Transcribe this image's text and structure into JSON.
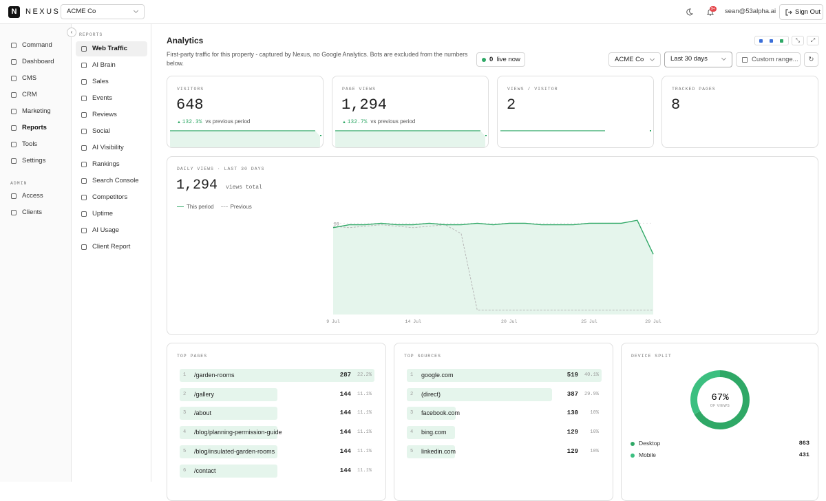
{
  "header": {
    "logo": "N",
    "brand": "NEXUS",
    "org": "ACME Co",
    "notifications": "9+",
    "user": "sean@53alpha.ai",
    "sign_out": "Sign Out"
  },
  "sidebar": {
    "items": [
      "Command",
      "Dashboard",
      "CMS",
      "CRM",
      "Marketing",
      "Reports",
      "Tools",
      "Settings"
    ],
    "active_index": 5,
    "admin_heading": "ADMIN",
    "admin_items": [
      "Access",
      "Clients"
    ]
  },
  "subnav": {
    "heading": "REPORTS",
    "items": [
      "Web Traffic",
      "AI Brain",
      "Sales",
      "Events",
      "Reviews",
      "Social",
      "AI Visibility",
      "Rankings",
      "Search Console",
      "Competitors",
      "Uptime",
      "AI Usage",
      "Client Report"
    ],
    "active_index": 0
  },
  "main": {
    "title": "Analytics",
    "description": "First-party traffic for this property - captured by Nexus, no Google Analytics. Bots are excluded from the numbers below.",
    "live_count": "0",
    "live_label": "live now",
    "filters": {
      "org": "ACME Co",
      "range": "Last 30 days",
      "custom": "Custom range..."
    }
  },
  "kpis": [
    {
      "label": "VISITORS",
      "value": "648",
      "change": "132.3%",
      "change_note": "vs previous period"
    },
    {
      "label": "PAGE VIEWS",
      "value": "1,294",
      "change": "132.7%",
      "change_note": "vs previous period"
    },
    {
      "label": "VIEWS / VISITOR",
      "value": "2"
    },
    {
      "label": "TRACKED PAGES",
      "value": "8"
    }
  ],
  "chart_data": {
    "type": "line",
    "title": "DAILY VIEWS · LAST 30 DAYS",
    "total": "1,294",
    "total_label": "views total",
    "categories": [
      "9 Jul",
      null,
      null,
      null,
      null,
      "14 Jul",
      null,
      null,
      null,
      null,
      null,
      "20 Jul",
      null,
      null,
      null,
      null,
      "25 Jul",
      null,
      null,
      null,
      "29 Jul"
    ],
    "series": [
      {
        "name": "This period",
        "color": "#2fa866",
        "values": [
          56,
          58,
          58,
          59,
          58,
          58,
          59,
          58,
          58,
          59,
          58,
          59,
          59,
          58,
          58,
          58,
          59,
          59,
          59,
          61,
          38
        ]
      },
      {
        "name": "Previous",
        "color": "#b8b8b8",
        "values": [
          57,
          56,
          57,
          58,
          57,
          56,
          57,
          58,
          52,
          0,
          0,
          0,
          0,
          0,
          0,
          0,
          0,
          0,
          0,
          0,
          0
        ]
      }
    ],
    "ylim": [
      -3,
      62
    ],
    "yticks": [
      59,
      32,
      4
    ],
    "grid": true,
    "area_color": "#e5f5ec"
  },
  "top_pages": {
    "title": "TOP PAGES",
    "bar_color": "#e5f5ec",
    "rows": [
      {
        "rank": "1",
        "name": "/garden-rooms",
        "views": 287,
        "share": "22.2%"
      },
      {
        "rank": "2",
        "name": "/gallery",
        "views": 144,
        "share": "11.1%"
      },
      {
        "rank": "3",
        "name": "/about",
        "views": 144,
        "share": "11.1%"
      },
      {
        "rank": "4",
        "name": "/blog/planning-permission-guide",
        "views": 144,
        "share": "11.1%"
      },
      {
        "rank": "5",
        "name": "/blog/insulated-garden-rooms",
        "views": 144,
        "share": "11.1%"
      },
      {
        "rank": "6",
        "name": "/contact",
        "views": 144,
        "share": "11.1%"
      }
    ]
  },
  "top_sources": {
    "title": "TOP SOURCES",
    "bar_color": "#e5f5ec",
    "rows": [
      {
        "rank": "1",
        "name": "google.com",
        "views": 519,
        "share": "40.1%"
      },
      {
        "rank": "2",
        "name": "(direct)",
        "views": 387,
        "share": "29.9%"
      },
      {
        "rank": "3",
        "name": "facebook.com",
        "views": 130,
        "share": "10%"
      },
      {
        "rank": "4",
        "name": "bing.com",
        "views": 129,
        "share": "10%"
      },
      {
        "rank": "5",
        "name": "linkedin.com",
        "views": 129,
        "share": "10%"
      }
    ]
  },
  "device_split": {
    "title": "DEVICE SPLIT",
    "center_value": "67%",
    "center_label": "OF VIEWS",
    "segments": [
      {
        "name": "Desktop",
        "value": 863,
        "color": "#2fa866"
      },
      {
        "name": "Mobile",
        "value": 431,
        "color": "#3cbf80"
      }
    ]
  }
}
